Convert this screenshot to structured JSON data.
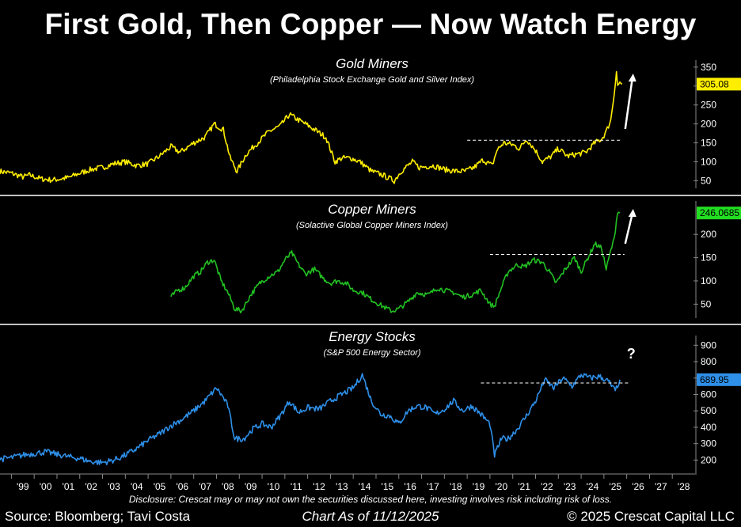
{
  "header": {
    "title": "First Gold, Then Copper — Now Watch Energy"
  },
  "footer": {
    "disclosure": "Disclosure: Crescat may or may not own the securities discussed here, investing involves risk including risk of loss.",
    "source": "Source: Bloomberg; Tavi Costa",
    "date": "Chart As of 11/12/2025",
    "copyright": "© 2025 Crescat Capital LLC"
  },
  "chart_data": [
    {
      "type": "line",
      "title": "Gold Miners",
      "subtitle": "(Philadelphia Stock Exchange Gold and Silver Index)",
      "color": "#ffee00",
      "last_value": "305.08",
      "last_label_bg": "#ffee00",
      "ylim": [
        30,
        360
      ],
      "yticks": [
        50,
        100,
        150,
        200,
        250,
        300,
        350
      ],
      "threshold": {
        "value": 157,
        "x_from": 2019.0,
        "x_to": 2025.8
      },
      "annotation": "up-arrow",
      "x": [
        1998.5,
        1999.0,
        1999.5,
        1999.8,
        2000.3,
        2000.8,
        2001.5,
        2002.0,
        2002.5,
        2003.0,
        2003.5,
        2004.0,
        2004.5,
        2005.0,
        2005.5,
        2006.0,
        2006.4,
        2007.0,
        2007.5,
        2007.9,
        2008.3,
        2008.6,
        2008.9,
        2009.3,
        2009.8,
        2010.3,
        2010.8,
        2011.2,
        2011.6,
        2011.9,
        2012.3,
        2012.8,
        2013.2,
        2013.5,
        2013.9,
        2014.3,
        2014.8,
        2015.3,
        2015.8,
        2016.1,
        2016.6,
        2016.9,
        2017.5,
        2018.0,
        2018.5,
        2018.9,
        2019.3,
        2019.7,
        2020.1,
        2020.3,
        2020.6,
        2021.0,
        2021.3,
        2021.6,
        2022.0,
        2022.3,
        2022.7,
        2023.0,
        2023.4,
        2023.8,
        2024.2,
        2024.6,
        2024.9,
        2025.1,
        2025.3,
        2025.45,
        2025.55,
        2025.6,
        2025.7,
        2025.8
      ],
      "values": [
        75,
        70,
        60,
        65,
        55,
        52,
        58,
        70,
        80,
        85,
        95,
        100,
        90,
        95,
        115,
        140,
        125,
        150,
        165,
        200,
        185,
        110,
        75,
        120,
        150,
        180,
        195,
        225,
        210,
        200,
        185,
        165,
        100,
        110,
        110,
        100,
        75,
        65,
        50,
        75,
        100,
        85,
        90,
        80,
        75,
        75,
        85,
        105,
        90,
        130,
        150,
        145,
        135,
        160,
        130,
        100,
        115,
        135,
        115,
        120,
        125,
        150,
        160,
        180,
        210,
        280,
        340,
        300,
        310,
        305
      ]
    },
    {
      "type": "line",
      "title": "Copper Miners",
      "subtitle": "(Solactive Global Copper Miners Index)",
      "color": "#22c022",
      "last_value": "246.0685",
      "last_label_bg": "#22dd22",
      "ylim": [
        20,
        265
      ],
      "yticks": [
        50,
        100,
        150,
        200
      ],
      "threshold": {
        "value": 157,
        "x_from": 2020.0,
        "x_to": 2025.9
      },
      "annotation": "up-arrow",
      "x": [
        2006.0,
        2006.3,
        2006.6,
        2007.0,
        2007.3,
        2007.6,
        2007.9,
        2008.2,
        2008.5,
        2008.8,
        2009.1,
        2009.5,
        2009.9,
        2010.3,
        2010.7,
        2011.0,
        2011.3,
        2011.6,
        2011.9,
        2012.3,
        2012.7,
        2013.0,
        2013.3,
        2013.7,
        2014.0,
        2014.4,
        2014.8,
        2015.3,
        2015.7,
        2016.0,
        2016.4,
        2016.8,
        2017.3,
        2017.7,
        2018.0,
        2018.4,
        2018.8,
        2019.2,
        2019.6,
        2020.0,
        2020.2,
        2020.5,
        2020.8,
        2021.2,
        2021.5,
        2021.9,
        2022.3,
        2022.6,
        2022.9,
        2023.3,
        2023.7,
        2024.0,
        2024.3,
        2024.6,
        2024.9,
        2025.1,
        2025.3,
        2025.45,
        2025.6,
        2025.7
      ],
      "values": [
        65,
        80,
        85,
        110,
        120,
        140,
        145,
        100,
        75,
        40,
        35,
        70,
        95,
        110,
        120,
        145,
        160,
        135,
        115,
        125,
        105,
        95,
        100,
        95,
        80,
        75,
        60,
        45,
        35,
        40,
        55,
        75,
        70,
        85,
        80,
        75,
        65,
        70,
        80,
        50,
        45,
        85,
        120,
        135,
        130,
        145,
        140,
        120,
        95,
        125,
        150,
        120,
        150,
        180,
        170,
        125,
        165,
        190,
        250,
        246
      ]
    },
    {
      "type": "line",
      "title": "Energy Stocks",
      "subtitle": "(S&P 500 Energy Sector)",
      "color": "#2e8fe8",
      "last_value": "689.95",
      "last_label_bg": "#2e8fe8",
      "ylim": [
        120,
        940
      ],
      "yticks": [
        200,
        300,
        400,
        500,
        600,
        700,
        800,
        900
      ],
      "threshold": {
        "value": 670,
        "x_from": 2019.6,
        "x_to": 2026.1
      },
      "annotation": "?",
      "x": [
        1998.5,
        1999.0,
        1999.5,
        2000.0,
        2000.5,
        2001.0,
        2001.5,
        2002.0,
        2002.5,
        2003.0,
        2003.5,
        2004.0,
        2004.5,
        2005.0,
        2005.5,
        2006.0,
        2006.5,
        2007.0,
        2007.5,
        2008.0,
        2008.3,
        2008.5,
        2008.8,
        2009.2,
        2009.6,
        2010.0,
        2010.4,
        2010.8,
        2011.2,
        2011.6,
        2012.0,
        2012.5,
        2013.0,
        2013.5,
        2014.0,
        2014.4,
        2014.8,
        2015.2,
        2015.6,
        2016.0,
        2016.4,
        2016.8,
        2017.2,
        2017.6,
        2018.0,
        2018.4,
        2018.8,
        2019.2,
        2019.6,
        2020.0,
        2020.2,
        2020.5,
        2020.8,
        2021.2,
        2021.6,
        2022.0,
        2022.4,
        2022.8,
        2023.2,
        2023.6,
        2024.0,
        2024.4,
        2024.8,
        2025.2,
        2025.5,
        2025.7
      ],
      "values": [
        205,
        215,
        230,
        240,
        250,
        235,
        220,
        210,
        190,
        185,
        200,
        230,
        270,
        320,
        360,
        410,
        450,
        500,
        560,
        640,
        580,
        530,
        330,
        330,
        390,
        420,
        400,
        470,
        560,
        490,
        520,
        510,
        560,
        600,
        640,
        720,
        560,
        480,
        470,
        420,
        500,
        530,
        520,
        480,
        510,
        560,
        500,
        530,
        480,
        420,
        230,
        330,
        330,
        390,
        470,
        560,
        690,
        640,
        700,
        650,
        720,
        700,
        710,
        680,
        620,
        690
      ]
    }
  ],
  "x_axis": {
    "ticks": [
      "'99",
      "'00",
      "'01",
      "'02",
      "'03",
      "'04",
      "'05",
      "'06",
      "'07",
      "'08",
      "'09",
      "'10",
      "'11",
      "'12",
      "'13",
      "'14",
      "'15",
      "'16",
      "'17",
      "'18",
      "'19",
      "'20",
      "'21",
      "'22",
      "'23",
      "'24",
      "'25",
      "'26",
      "'27",
      "'28"
    ],
    "range": [
      1998.5,
      2029.0
    ]
  }
}
